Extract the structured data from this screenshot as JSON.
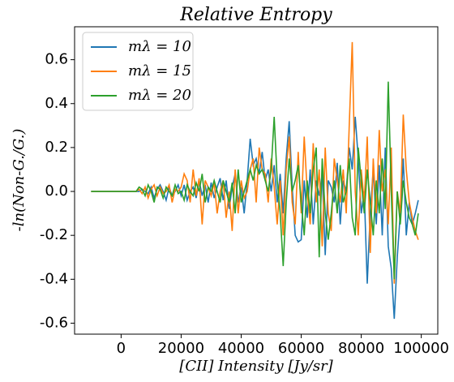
{
  "chart_data": {
    "type": "line",
    "title": "Relative Entropy",
    "x_label": "[CII] Intensity [Jy/sr]",
    "y_label": "-ln(Non-G./G.)",
    "x": [
      -10000,
      -9000,
      -8000,
      -7000,
      -6000,
      -5000,
      -4000,
      -3000,
      -2000,
      -1000,
      0,
      1000,
      2000,
      3000,
      4000,
      5000,
      6000,
      7000,
      8000,
      9000,
      10000,
      11000,
      12000,
      13000,
      14000,
      15000,
      16000,
      17000,
      18000,
      19000,
      20000,
      21000,
      22000,
      23000,
      24000,
      25000,
      26000,
      27000,
      28000,
      29000,
      30000,
      31000,
      32000,
      33000,
      34000,
      35000,
      36000,
      37000,
      38000,
      39000,
      40000,
      41000,
      42000,
      43000,
      44000,
      45000,
      46000,
      47000,
      48000,
      49000,
      50000,
      51000,
      52000,
      53000,
      54000,
      55000,
      56000,
      57000,
      58000,
      59000,
      60000,
      61000,
      62000,
      63000,
      64000,
      65000,
      66000,
      67000,
      68000,
      69000,
      70000,
      71000,
      72000,
      73000,
      74000,
      75000,
      76000,
      77000,
      78000,
      79000,
      80000,
      81000,
      82000,
      83000,
      84000,
      85000,
      86000,
      87000,
      88000,
      89000,
      90000,
      91000,
      92000,
      93000,
      94000,
      95000,
      96000,
      97000,
      98000,
      99000
    ],
    "series": [
      {
        "name": "mλ = 10",
        "color": "#1f77b4",
        "values": [
          0,
          0,
          0,
          0,
          0,
          0,
          0,
          0,
          0,
          0,
          0,
          0,
          0,
          0,
          0,
          0,
          0.0,
          0.01,
          0.0,
          -0.01,
          0.02,
          -0.03,
          0.01,
          0.03,
          0.0,
          -0.04,
          0.02,
          -0.02,
          0.0,
          0.03,
          -0.02,
          0.03,
          -0.04,
          0.0,
          0.02,
          -0.03,
          0.05,
          -0.02,
          0.03,
          -0.05,
          0.04,
          -0.03,
          0.02,
          0.06,
          -0.04,
          0.05,
          -0.08,
          0.02,
          0.08,
          -0.05,
          0.02,
          -0.1,
          0.05,
          0.24,
          0.12,
          0.15,
          0.08,
          0.18,
          0.05,
          0.1,
          0.0,
          0.12,
          -0.05,
          0.08,
          -0.1,
          0.15,
          0.32,
          0.02,
          -0.2,
          -0.23,
          -0.22,
          0.05,
          -0.12,
          0.1,
          -0.15,
          0.05,
          -0.02,
          0.08,
          -0.29,
          0.05,
          0.02,
          -0.05,
          0.13,
          -0.15,
          0.05,
          0.0,
          0.2,
          0.1,
          0.34,
          0.15,
          -0.1,
          0.0,
          -0.42,
          -0.1,
          0.1,
          -0.15,
          0.12,
          -0.2,
          0.2,
          -0.25,
          -0.35,
          -0.58,
          -0.3,
          -0.1,
          0.15,
          -0.2,
          -0.05,
          -0.15,
          -0.1,
          -0.04
        ]
      },
      {
        "name": "mλ = 15",
        "color": "#ff7f0e",
        "values": [
          0,
          0,
          0,
          0,
          0,
          0,
          0,
          0,
          0,
          0,
          0,
          0,
          0,
          0,
          0,
          0,
          0.01,
          -0.01,
          0.02,
          -0.03,
          0.01,
          0.03,
          -0.02,
          0.02,
          -0.01,
          0.0,
          0.03,
          -0.05,
          0.01,
          0.0,
          0.02,
          0.08,
          0.05,
          -0.05,
          0.1,
          -0.02,
          0.06,
          -0.15,
          0.05,
          0.02,
          -0.02,
          0.04,
          -0.1,
          0.0,
          0.05,
          -0.12,
          0.0,
          -0.18,
          0.1,
          -0.1,
          0.05,
          -0.03,
          0.0,
          0.1,
          0.15,
          -0.05,
          0.2,
          0.1,
          0.08,
          -0.05,
          0.15,
          0.02,
          -0.15,
          0.05,
          -0.2,
          0.1,
          0.25,
          -0.05,
          -0.15,
          0.18,
          -0.1,
          0.25,
          0.0,
          -0.15,
          0.22,
          -0.05,
          0.1,
          -0.25,
          0.2,
          -0.1,
          -0.18,
          0.15,
          0.05,
          -0.05,
          0.1,
          -0.1,
          0.3,
          0.68,
          0.0,
          -0.2,
          0.1,
          -0.05,
          0.25,
          -0.28,
          0.15,
          -0.1,
          0.28,
          0.0,
          0.1,
          -0.15,
          0.2,
          -0.42,
          0.0,
          -0.1,
          0.35,
          0.1,
          -0.05,
          -0.12,
          -0.18,
          -0.22
        ]
      },
      {
        "name": "mλ = 20",
        "color": "#2ca02c",
        "values": [
          0,
          0,
          0,
          0,
          0,
          0,
          0,
          0,
          0,
          0,
          0,
          0,
          0,
          0,
          0,
          0,
          0.02,
          0.01,
          -0.02,
          0.03,
          0.0,
          -0.05,
          0.02,
          0.01,
          -0.03,
          0.02,
          0.0,
          -0.02,
          0.03,
          -0.01,
          0.0,
          -0.04,
          0.03,
          0.0,
          -0.02,
          0.04,
          0.0,
          0.08,
          -0.05,
          0.02,
          0.0,
          0.05,
          0.0,
          -0.05,
          0.05,
          0.0,
          -0.05,
          0.04,
          -0.1,
          0.1,
          -0.05,
          0.0,
          0.05,
          0.1,
          0.05,
          0.12,
          0.08,
          0.1,
          0.05,
          0.0,
          0.1,
          0.34,
          0.05,
          -0.1,
          -0.34,
          -0.05,
          0.15,
          0.0,
          0.05,
          0.12,
          -0.05,
          -0.2,
          0.05,
          -0.1,
          0.1,
          0.2,
          -0.3,
          0.15,
          -0.1,
          -0.22,
          -0.1,
          0.05,
          -0.1,
          0.12,
          -0.05,
          0.0,
          0.15,
          -0.12,
          -0.2,
          0.2,
          0.05,
          -0.1,
          0.1,
          -0.05,
          -0.2,
          0.05,
          -0.1,
          0.15,
          -0.08,
          0.5,
          0.0,
          -0.4,
          0.0,
          -0.15,
          0.05,
          -0.05,
          -0.12,
          -0.15,
          -0.2,
          -0.1
        ]
      }
    ],
    "xlim": [
      -15500,
      105500
    ],
    "xticks": [
      0,
      20000,
      40000,
      60000,
      80000,
      100000
    ],
    "ylim": [
      -0.65,
      0.75
    ],
    "yticks": [
      -0.6,
      -0.4,
      -0.2,
      {
        "value": 0,
        "label": "0.0"
      },
      0.2,
      0.4,
      0.6
    ],
    "legend": "upper left",
    "grid": false
  }
}
